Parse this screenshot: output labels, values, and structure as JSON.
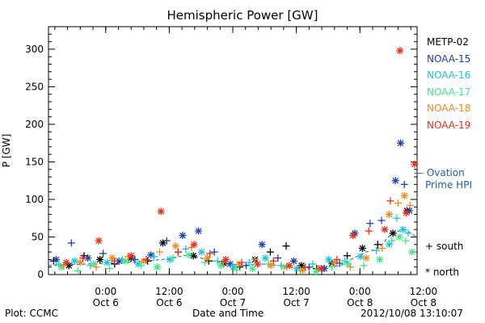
{
  "chart_data": {
    "type": "scatter",
    "title": "Hemispheric Power [GW]",
    "ylabel": "P [GW]",
    "xlabel": "Date and Time",
    "ylim": [
      0,
      330
    ],
    "xlim": [
      0,
      58
    ],
    "yticks": [
      0,
      50,
      100,
      150,
      200,
      250,
      300
    ],
    "xticks": [
      {
        "x": 9,
        "time": "0:00",
        "date": "Oct 6"
      },
      {
        "x": 19,
        "time": "12:00",
        "date": "Oct 6"
      },
      {
        "x": 29,
        "time": "0:00",
        "date": "Oct 7"
      },
      {
        "x": 39,
        "time": "12:00",
        "date": "Oct 7"
      },
      {
        "x": 49,
        "time": "0:00",
        "date": "Oct 8"
      },
      {
        "x": 59,
        "time": "12:00",
        "date": "Oct 8"
      }
    ],
    "markers": {
      "south": "+",
      "north": "*"
    },
    "series": [
      {
        "name": "METP-02",
        "color": "#000000",
        "x": [
          0.8,
          3.2,
          5.6,
          8.1,
          10.4,
          13.0,
          15.6,
          18.0,
          20.4,
          22.8,
          25.2,
          27.6,
          30.1,
          32.5,
          34.9,
          37.4,
          39.8,
          42.2,
          44.6,
          47.0,
          49.4,
          51.8,
          54.2,
          56.4
        ],
        "y": [
          18,
          12,
          25,
          20,
          14,
          22,
          18,
          42,
          30,
          25,
          18,
          15,
          10,
          20,
          30,
          38,
          12,
          8,
          15,
          25,
          35,
          40,
          55,
          85
        ],
        "marker": [
          "+",
          "*",
          "+",
          "*",
          "+",
          "*",
          "+",
          "*",
          "+",
          "*",
          "+",
          "*",
          "+",
          "*",
          "+",
          "+",
          "*",
          "+",
          "*",
          "+",
          "*",
          "+",
          "*",
          "*"
        ]
      },
      {
        "name": "NOAA-15",
        "color": "#1c3fb0",
        "x": [
          1.2,
          3.6,
          6.2,
          8.6,
          11.1,
          13.6,
          16.1,
          18.6,
          21.1,
          23.6,
          26.1,
          28.6,
          31.1,
          33.6,
          36.1,
          38.6,
          41.0,
          43.4,
          45.8,
          48.2,
          50.6,
          52.4,
          54.6,
          55.4,
          56.0,
          56.8
        ],
        "y": [
          20,
          42,
          22,
          28,
          18,
          20,
          26,
          45,
          52,
          58,
          30,
          14,
          12,
          40,
          22,
          18,
          10,
          8,
          15,
          55,
          68,
          72,
          125,
          175,
          120,
          85
        ],
        "marker": [
          "*",
          "+",
          "*",
          "+",
          "*",
          "+",
          "*",
          "+",
          "*",
          "*",
          "+",
          "*",
          "+",
          "*",
          "+",
          "*",
          "+",
          "*",
          "+",
          "*",
          "+",
          "+",
          "*",
          "*",
          "+",
          "*"
        ]
      },
      {
        "name": "NOAA-16",
        "color": "#1ec4dc",
        "x": [
          1.6,
          4.1,
          6.6,
          9.2,
          11.6,
          14.1,
          16.6,
          19.1,
          21.6,
          24.1,
          26.6,
          29.1,
          31.6,
          34.1,
          36.6,
          39.1,
          41.6,
          44.1,
          46.6,
          49.1,
          51.6,
          53.6,
          54.8,
          55.8,
          56.6
        ],
        "y": [
          14,
          18,
          12,
          16,
          20,
          14,
          24,
          20,
          34,
          30,
          18,
          10,
          16,
          22,
          12,
          8,
          14,
          20,
          18,
          24,
          32,
          40,
          75,
          60,
          55
        ],
        "marker": [
          "+",
          "*",
          "+",
          "*",
          "+",
          "*",
          "+",
          "*",
          "+",
          "*",
          "+",
          "*",
          "+",
          "*",
          "+",
          "*",
          "+",
          "*",
          "+",
          "*",
          "+",
          "*",
          "+",
          "*",
          "+"
        ]
      },
      {
        "name": "NOAA-17",
        "color": "#3de88a",
        "x": [
          2.0,
          4.6,
          7.1,
          9.6,
          12.1,
          14.6,
          17.1,
          19.6,
          22.1,
          24.6,
          27.1,
          29.6,
          32.1,
          34.6,
          37.1,
          39.6,
          42.1,
          44.6,
          47.1,
          49.6,
          52.1,
          54.0,
          55.2,
          56.2,
          57.2
        ],
        "y": [
          10,
          5,
          14,
          8,
          18,
          12,
          10,
          22,
          26,
          16,
          12,
          6,
          8,
          14,
          10,
          6,
          4,
          10,
          14,
          12,
          20,
          45,
          50,
          45,
          30
        ],
        "marker": [
          "*",
          "+",
          "*",
          "+",
          "*",
          "+",
          "*",
          "+",
          "*",
          "+",
          "*",
          "+",
          "*",
          "+",
          "*",
          "+",
          "*",
          "+",
          "*",
          "+",
          "*",
          "+",
          "*",
          "+",
          "*"
        ]
      },
      {
        "name": "NOAA-18",
        "color": "#f08a1c",
        "x": [
          2.4,
          5.0,
          7.5,
          10.0,
          12.5,
          15.0,
          17.5,
          20.0,
          22.5,
          25.0,
          27.5,
          30.0,
          32.5,
          35.0,
          37.5,
          40.0,
          42.5,
          45.0,
          47.5,
          50.0,
          52.5,
          53.6,
          55.0,
          56.0,
          56.9
        ],
        "y": [
          12,
          16,
          10,
          22,
          24,
          18,
          30,
          38,
          36,
          22,
          16,
          14,
          20,
          12,
          10,
          6,
          8,
          16,
          10,
          22,
          35,
          80,
          95,
          105,
          92
        ],
        "marker": [
          "+",
          "*",
          "+",
          "*",
          "+",
          "*",
          "+",
          "*",
          "+",
          "*",
          "+",
          "*",
          "+",
          "*",
          "+",
          "*",
          "+",
          "*",
          "+",
          "*",
          "+",
          "*",
          "+",
          "*",
          "+"
        ]
      },
      {
        "name": "NOAA-19",
        "color": "#e0301e",
        "x": [
          2.8,
          5.4,
          7.9,
          10.4,
          13.0,
          15.4,
          17.7,
          20.4,
          22.9,
          25.4,
          27.9,
          30.4,
          32.9,
          35.4,
          37.9,
          40.4,
          42.9,
          45.4,
          47.9,
          50.4,
          52.9,
          53.8,
          55.3,
          56.3,
          57.6
        ],
        "y": [
          16,
          22,
          45,
          18,
          25,
          20,
          84,
          30,
          40,
          28,
          20,
          16,
          14,
          18,
          12,
          10,
          8,
          20,
          52,
          58,
          60,
          98,
          298,
          82,
          147
        ],
        "marker": [
          "*",
          "+",
          "*",
          "+",
          "*",
          "+",
          "*",
          "+",
          "*",
          "+",
          "*",
          "+",
          "*",
          "+",
          "*",
          "+",
          "*",
          "+",
          "*",
          "+",
          "*",
          "+",
          "*",
          "*",
          "*"
        ]
      }
    ],
    "ovation_prime_hpi": {
      "name": "-- Ovation Prime HPI",
      "color": "#1f5fa8",
      "x": [
        0,
        6,
        12,
        18,
        22,
        26,
        30,
        34,
        38,
        42,
        46,
        48,
        50,
        52,
        54,
        56,
        58
      ],
      "y": [
        12,
        14,
        16,
        20,
        26,
        18,
        12,
        14,
        10,
        8,
        12,
        22,
        30,
        35,
        55,
        60,
        50
      ]
    }
  },
  "legend": {
    "items": [
      {
        "label": "METP-02",
        "color": "#000000"
      },
      {
        "label": "NOAA-15",
        "color": "#1c3fb0"
      },
      {
        "label": "NOAA-16",
        "color": "#1ec4dc"
      },
      {
        "label": "NOAA-17",
        "color": "#3de88a"
      },
      {
        "label": "NOAA-18",
        "color": "#f08a1c"
      },
      {
        "label": "NOAA-19",
        "color": "#e0301e"
      }
    ],
    "ovation_line1": "— Ovation",
    "ovation_line2": "Prime HPI",
    "south_label": "+ south",
    "north_label": "* north"
  },
  "footer": {
    "plot_by": "Plot: CCMC",
    "axis_caption": "Date and Time",
    "timestamp": "2012/10/08 13:10:07"
  }
}
